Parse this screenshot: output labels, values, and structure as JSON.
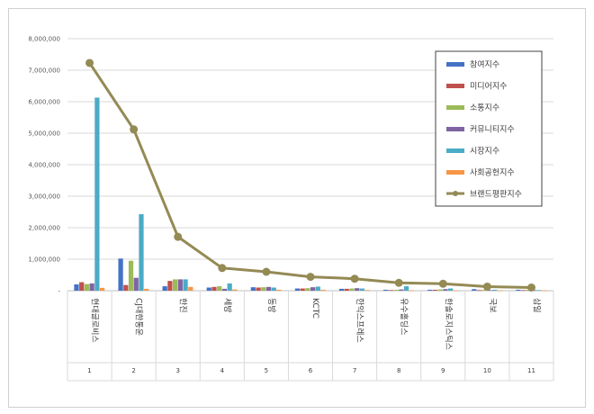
{
  "chart_data": {
    "type": "bar+line",
    "title": "",
    "xlabel": "",
    "ylabel": "",
    "ylim": [
      0,
      8000000
    ],
    "yticks": [
      "-",
      "1,000,000",
      "2,000,000",
      "3,000,000",
      "4,000,000",
      "5,000,000",
      "6,000,000",
      "7,000,000",
      "8,000,000"
    ],
    "grid": true,
    "legend_position": "top-right",
    "categories": [
      "현대글로비스",
      "CJ대한통운",
      "한진",
      "세방",
      "동방",
      "KCTC",
      "한익스프레스",
      "유수홀딩스",
      "한솔로지스틱스",
      "국보",
      "삼일"
    ],
    "category_numbers": [
      "1",
      "2",
      "3",
      "4",
      "5",
      "6",
      "7",
      "8",
      "9",
      "10",
      "11"
    ],
    "series": [
      {
        "name": "참여지수",
        "type": "bar",
        "color": "#4472c4",
        "values": [
          200000,
          1020000,
          140000,
          100000,
          110000,
          70000,
          60000,
          30000,
          30000,
          50000,
          30000
        ]
      },
      {
        "name": "미디어지수",
        "type": "bar",
        "color": "#c0504d",
        "values": [
          270000,
          180000,
          310000,
          120000,
          100000,
          70000,
          60000,
          20000,
          30000,
          20000,
          20000
        ]
      },
      {
        "name": "소통지수",
        "type": "bar",
        "color": "#9bbb59",
        "values": [
          210000,
          950000,
          360000,
          140000,
          110000,
          80000,
          70000,
          30000,
          40000,
          30000,
          30000
        ]
      },
      {
        "name": "커뮤니티지수",
        "type": "bar",
        "color": "#8064a2",
        "values": [
          230000,
          410000,
          360000,
          60000,
          120000,
          110000,
          80000,
          40000,
          50000,
          20000,
          20000
        ]
      },
      {
        "name": "시장지수",
        "type": "bar",
        "color": "#4bacc6",
        "values": [
          6130000,
          2430000,
          360000,
          230000,
          100000,
          130000,
          70000,
          140000,
          70000,
          30000,
          20000
        ]
      },
      {
        "name": "사회공헌지수",
        "type": "bar",
        "color": "#f79646",
        "values": [
          90000,
          60000,
          120000,
          40000,
          30000,
          30000,
          20000,
          10000,
          10000,
          10000,
          10000
        ]
      },
      {
        "name": "브랜드평판지수",
        "type": "line",
        "color": "#948a54",
        "values": [
          7230000,
          5120000,
          1710000,
          720000,
          600000,
          440000,
          380000,
          250000,
          220000,
          130000,
          100000
        ]
      }
    ]
  }
}
